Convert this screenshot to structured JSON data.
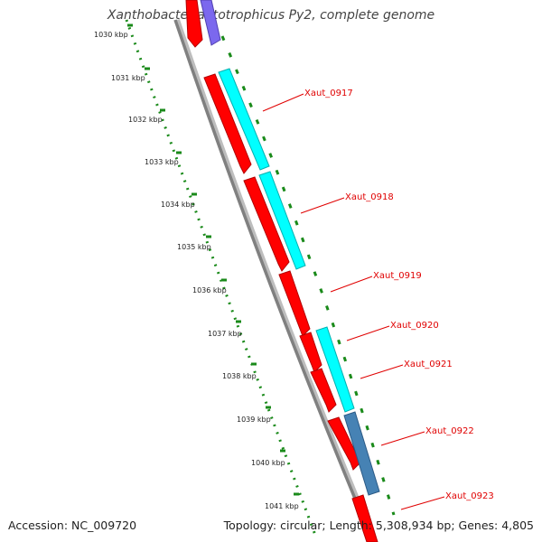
{
  "title": "Xanthobacter autotrophicus Py2, complete genome",
  "accession": "Accession: NC_009720",
  "summary": "Topology: circular; Length: 5,308,934 bp; Genes: 4,805",
  "colors": {
    "cds": "#ff0000",
    "cyan_track": "#00ffff",
    "purple_track": "#7b68ee",
    "steel_track": "#4682b4",
    "backbone": "#808080",
    "ruler": "#1a8a1a",
    "label": "#e00000"
  },
  "kbp_ticks": [
    "1030 kbp",
    "1031 kbp",
    "1032 kbp",
    "1033 kbp",
    "1034 kbp",
    "1035 kbp",
    "1036 kbp",
    "1037 kbp",
    "1038 kbp",
    "1039 kbp",
    "1040 kbp",
    "1041 kbp"
  ],
  "gene_labels": [
    "Xaut_0917",
    "Xaut_0918",
    "Xaut_0919",
    "Xaut_0920",
    "Xaut_0921",
    "Xaut_0922",
    "Xaut_0923"
  ]
}
